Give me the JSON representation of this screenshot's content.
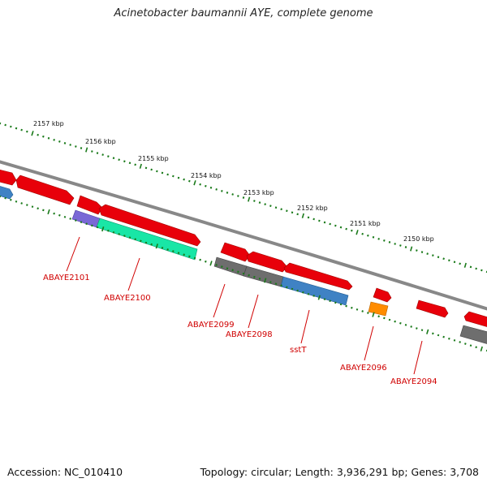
{
  "title": "Acinetobacter baumannii AYE, complete genome",
  "footer": {
    "accession": "Accession: NC_010410",
    "summary": "Topology: circular; Length: 3,936,291 bp; Genes: 3,708"
  },
  "scale_labels": [
    "2157 kbp",
    "2156 kbp",
    "2155 kbp",
    "2154 kbp",
    "2153 kbp",
    "2152 kbp",
    "2151 kbp",
    "2150 kbp"
  ],
  "colors": {
    "backbone": "#888888",
    "tick": "#1a7a1a",
    "label": "#d00000",
    "cds_red": "#e8000a",
    "cds_blue": "#3f82c4",
    "cds_gray": "#6e6e6e",
    "cds_green": "#19e6a6",
    "cds_purple": "#7a68d6",
    "cds_orange": "#ff8c00"
  },
  "gene_labels": [
    "ABAYE2101",
    "ABAYE2100",
    "ABAYE2099",
    "ABAYE2098",
    "sstT",
    "ABAYE2096",
    "ABAYE2094"
  ]
}
